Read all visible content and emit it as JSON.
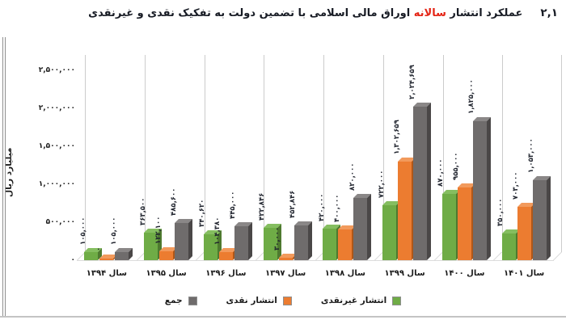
{
  "header": {
    "number": "۲,۱",
    "title_pre": "عملکرد انتشار",
    "title_highlight": "سالانه",
    "title_post": "اوراق مالی اسلامی با تضمین دولت به تفکیک نقدی و غیرنقدی",
    "highlight_color": "#e42415",
    "text_color": "#171b24"
  },
  "chart_data": {
    "type": "bar",
    "title": "عملکرد انتشار سالانه اوراق مالی اسلامی با تضمین دولت به تفکیک نقدی و غیرنقدی",
    "ylabel": "میلیارد ریال",
    "xlabel": "",
    "ylim": [
      0,
      2500000
    ],
    "grid": "vertical-category-separators",
    "legend_position": "bottom",
    "style": "3d-clustered-columns",
    "yticks": [
      {
        "label": "۰",
        "value": 0
      },
      {
        "label": "۵۰۰,۰۰۰",
        "value": 500000
      },
      {
        "label": "۱,۰۰۰,۰۰۰",
        "value": 1000000
      },
      {
        "label": "۱,۵۰۰,۰۰۰",
        "value": 1500000
      },
      {
        "label": "۲,۰۰۰,۰۰۰",
        "value": 2000000
      },
      {
        "label": "۲,۵۰۰,۰۰۰",
        "value": 2500000
      }
    ],
    "categories": [
      "سال ۱۳۹۴",
      "سال ۱۳۹۵",
      "سال ۱۳۹۶",
      "سال ۱۳۹۷",
      "سال ۱۳۹۸",
      "سال ۱۳۹۹",
      "سال ۱۴۰۰",
      "سال ۱۴۰۱"
    ],
    "series": [
      {
        "name": "انتشار غیرنقدی",
        "color": "#6fac46",
        "color_top": "#85be60",
        "color_side": "#4e7a2f",
        "values": [
          105000,
          363500,
          340620,
          422846,
          420000,
          722000,
          870000,
          350000
        ],
        "labels": [
          "۱۰۵,۰۰۰",
          "۳۶۳,۵۰۰",
          "۳۴۰,۶۲۰",
          "۴۲۲,۸۴۶",
          "۴۲۰,۰۰۰",
          "۷۲۲,۰۰۰",
          "۸۷۰,۰۰۰",
          "۳۵۰,۰۰۰"
        ]
      },
      {
        "name": "انتشار نقدی",
        "color": "#ec7c30",
        "color_top": "#f29a5c",
        "color_side": "#b05718",
        "values": [
          0,
          122100,
          104380,
          30000,
          400000,
          1302659,
          955000,
          703000
        ],
        "labels": [
          "۰",
          "۱۲۲,۱۰۰",
          "۱۰۴,۳۸۰",
          "۳۰,۰۰۰",
          "۴۰۰,۰۰۰",
          "۱,۳۰۲,۶۵۹",
          "۹۵۵,۰۰۰",
          "۷۰۳,۰۰۰"
        ]
      },
      {
        "name": "جمع",
        "color": "#6f6c6c",
        "color_top": "#8a8787",
        "color_side": "#4a4747",
        "values": [
          105000,
          485600,
          445000,
          452846,
          820000,
          2024659,
          1825000,
          1053000
        ],
        "labels": [
          "۱۰۵,۰۰۰",
          "۴۸۵,۶۰۰",
          "۴۴۵,۰۰۰",
          "۴۵۲,۸۴۶",
          "۸۲۰,۰۰۰",
          "۲,۰۲۴,۶۵۹",
          "۱,۸۲۵,۰۰۰",
          "۱,۰۵۳,۰۰۰"
        ]
      }
    ]
  }
}
